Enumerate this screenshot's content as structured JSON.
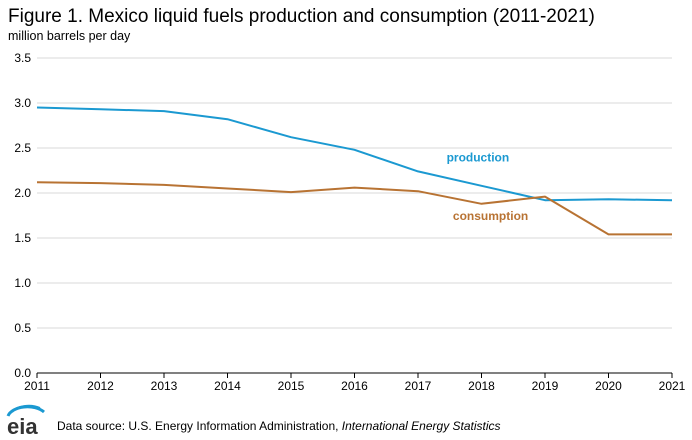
{
  "chart_data": {
    "type": "line",
    "title": "Figure 1. Mexico liquid fuels production and consumption (2011-2021)",
    "ylabel": "million barrels per day",
    "x": [
      2011,
      2012,
      2013,
      2014,
      2015,
      2016,
      2017,
      2018,
      2019,
      2020,
      2021
    ],
    "xlim": [
      2011,
      2021
    ],
    "ylim": [
      0,
      3.5
    ],
    "yticks": [
      "0.0",
      "0.5",
      "1.0",
      "1.5",
      "2.0",
      "2.5",
      "3.0",
      "3.5"
    ],
    "xticks": [
      "2011",
      "2012",
      "2013",
      "2014",
      "2015",
      "2016",
      "2017",
      "2018",
      "2019",
      "2020",
      "2021"
    ],
    "grid": "horizontal",
    "series": [
      {
        "name": "production",
        "color": "#1b99d1",
        "values": [
          2.95,
          2.93,
          2.91,
          2.82,
          2.62,
          2.48,
          2.24,
          2.08,
          1.92,
          1.93,
          1.92
        ]
      },
      {
        "name": "consumption",
        "color": "#b87333",
        "values": [
          2.12,
          2.11,
          2.09,
          2.05,
          2.01,
          2.06,
          2.02,
          1.88,
          1.96,
          1.54,
          1.54
        ]
      }
    ]
  },
  "footer": {
    "logo_text": "eia",
    "source_prefix": "Data source: U.S. Energy Information Administration, ",
    "source_title": "International Energy Statistics"
  }
}
